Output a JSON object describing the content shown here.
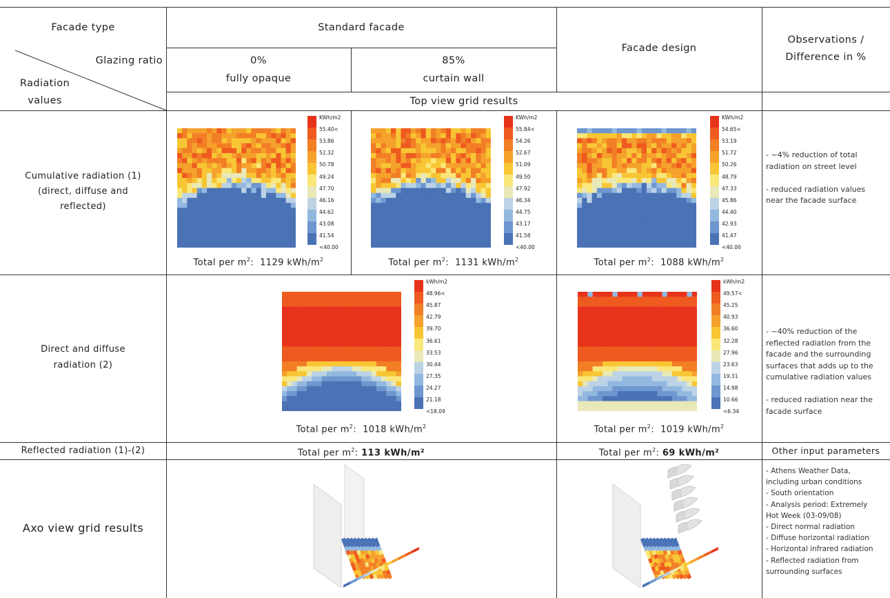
{
  "header": {
    "facade_type": "Facade type",
    "standard_facade": "Standard facade",
    "facade_design": "Facade design",
    "observations": [
      "Observations /",
      "Difference in %"
    ],
    "glazing_ratio": "Glazing ratio",
    "radiation_values": [
      "Radiation",
      "values"
    ],
    "col_0_pct": "0%",
    "col_0_desc": "fully opaque",
    "col_85_pct": "85%",
    "col_85_desc": "curtain wall",
    "top_view": "Top view grid results"
  },
  "rows": {
    "cumulative": [
      "Cumulative radiation (1)",
      "(direct, diffuse and",
      "reflected)"
    ],
    "direct": [
      "Direct and diffuse",
      "radiation (2)"
    ],
    "reflected": "Reflected radiation (1)-(2)",
    "axo": "Axo view grid results"
  },
  "totals": {
    "prefix": "Total per m",
    "unit": "kWh/m",
    "cum_0": "1129",
    "cum_85": "1131",
    "cum_design": "1088",
    "dir_std": "1018",
    "dir_design": "1019",
    "ref_std": "113 kWh/m²",
    "ref_design": "69 kWh/m²"
  },
  "legends": {
    "cum_0": [
      "KWh/m2",
      "55.40<",
      "53.86",
      "52.32",
      "50.78",
      "49.24",
      "47.70",
      "46.16",
      "44.62",
      "43.08",
      "41.54",
      "<40.00"
    ],
    "cum_85": [
      "KWh/m2",
      "55.84<",
      "54.26",
      "52.67",
      "51.09",
      "49.50",
      "47.92",
      "46.34",
      "44.75",
      "43.17",
      "41.58",
      "<40.00"
    ],
    "cum_design": [
      "KWh/m2",
      "54.65<",
      "53.19",
      "51.72",
      "50.26",
      "48.79",
      "47.33",
      "45.86",
      "44.40",
      "42.93",
      "41.47",
      "<40.00"
    ],
    "dir_std": [
      "kWh/m2",
      "48.96<",
      "45.87",
      "42.79",
      "39.70",
      "36.61",
      "33.53",
      "30.44",
      "27.35",
      "24.27",
      "21.18",
      "<18.09"
    ],
    "dir_design": [
      "kWh/m2",
      "49.57<",
      "45.25",
      "40.93",
      "36.60",
      "32.28",
      "27.96",
      "23.63",
      "19.31",
      "14.98",
      "10.66",
      "<6.34"
    ]
  },
  "colors": {
    "scale": [
      "#e8331c",
      "#ee5a1f",
      "#f27e25",
      "#f5a12c",
      "#f8c634",
      "#fae77a",
      "#e9e8b8",
      "#bcd3e6",
      "#93b8e0",
      "#6e96cf",
      "#4a72b5"
    ]
  },
  "observations": {
    "cumulative": [
      "- ~4% reduction of total",
      "radiation on street level",
      "",
      "- reduced radiation values",
      "near the facade surface"
    ],
    "direct": [
      "- ~40% reduction of the",
      "reflected radiation from the",
      "facade and the surrounding",
      "surfaces that adds up to the",
      "cumulative radiation values",
      "",
      "- reduced radiation near the",
      "facade surface"
    ],
    "reflected_label": "Other input parameters",
    "inputs": [
      "- Athens Weather Data,",
      "including urban conditions",
      "- South orientation",
      "- Analysis period: Extremely",
      "Hot Week (03-09/08)",
      "- Direct normal radiation",
      "- Diffuse horizontal radiation",
      "- Horizontal infrared radiation",
      "- Reflected radiation from",
      "surrounding surfaces"
    ]
  }
}
